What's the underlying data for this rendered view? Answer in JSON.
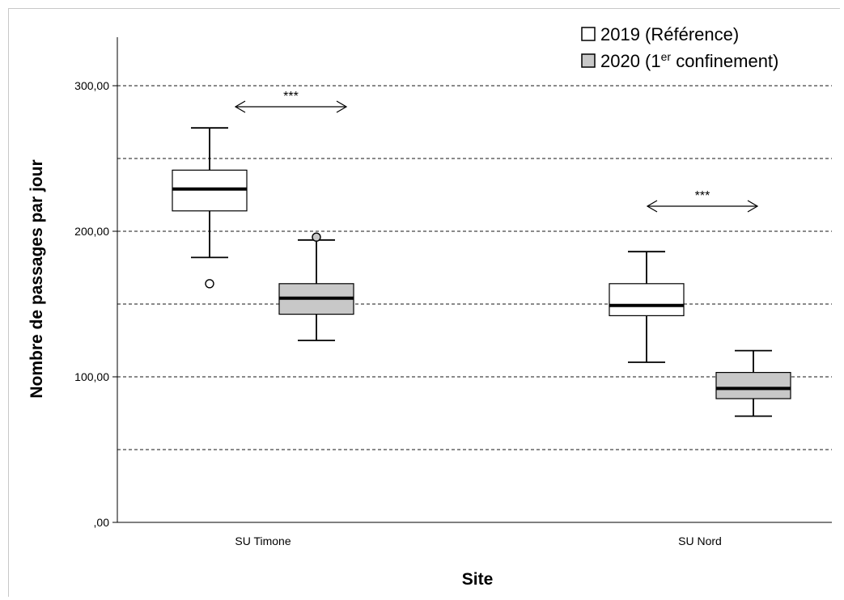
{
  "chart_data": {
    "type": "boxplot",
    "xlabel": "Site",
    "ylabel": "Nombre de passages par jour",
    "ylim": [
      0,
      330
    ],
    "yticks": [
      0,
      100,
      200,
      300
    ],
    "ytick_labels": [
      ",00",
      "100,00",
      "200,00",
      "300,00"
    ],
    "gridlines": [
      50,
      100,
      150,
      200,
      250,
      300
    ],
    "grid": "dashed horizontal",
    "legend_position": "top-right",
    "categories": [
      "SU Timone",
      "SU Nord"
    ],
    "series": [
      {
        "name": "2019 (Référence)",
        "color": "#ffffff",
        "boxes": [
          {
            "min": 182,
            "q1": 214,
            "median": 229,
            "q3": 242,
            "max": 271,
            "outliers": [
              164
            ]
          },
          {
            "min": 110,
            "q1": 142,
            "median": 149,
            "q3": 164,
            "max": 186,
            "outliers": []
          }
        ]
      },
      {
        "name": "2020 (1er confinement)",
        "color": "#c8c8c8",
        "boxes": [
          {
            "min": 125,
            "q1": 143,
            "median": 154,
            "q3": 164,
            "max": 194,
            "outliers": [
              196
            ]
          },
          {
            "min": 73,
            "q1": 85,
            "median": 92,
            "q3": 103,
            "max": 118,
            "outliers": []
          }
        ]
      }
    ],
    "annotations": [
      {
        "text": "***",
        "category": "SU Timone"
      },
      {
        "text": "***",
        "category": "SU Nord"
      }
    ]
  },
  "legend": {
    "item1": "2019 (Référence)",
    "item2_pre": "2020 (1",
    "item2_sup": "er",
    "item2_post": " confinement)"
  }
}
